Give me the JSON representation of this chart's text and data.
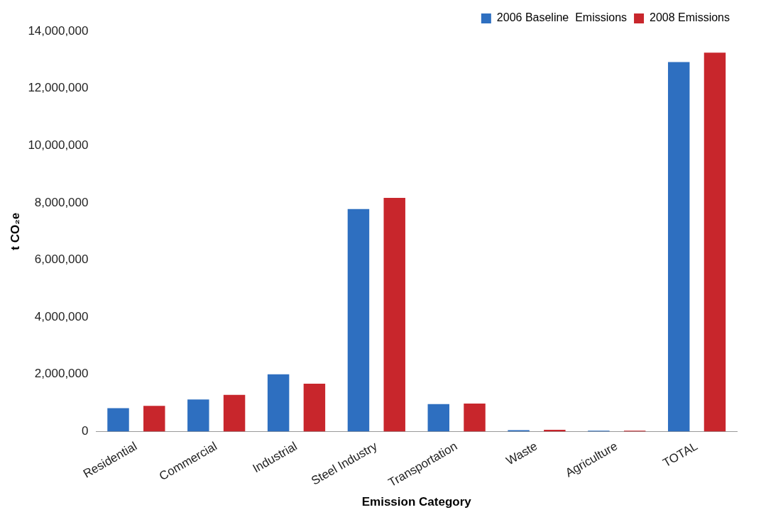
{
  "chart_data": {
    "type": "bar",
    "xlabel": "Emission Category",
    "ylabel": "t CO₂e",
    "categories": [
      "Residential",
      "Commercial",
      "Industrial",
      "Steel Industry",
      "Transportation",
      "Waste",
      "Agriculture",
      "TOTAL"
    ],
    "series": [
      {
        "name": "2006 Baseline  Emissions",
        "color": "#2e6fc0",
        "values": [
          820000,
          1120000,
          2000000,
          7780000,
          960000,
          50000,
          30000,
          12920000
        ]
      },
      {
        "name": "2008 Emissions",
        "color": "#c8262c",
        "values": [
          900000,
          1280000,
          1670000,
          8170000,
          980000,
          60000,
          30000,
          13250000
        ]
      }
    ],
    "ylim": [
      0,
      14000000
    ],
    "yticks": [
      {
        "value": 0,
        "label": "0"
      },
      {
        "value": 2000000,
        "label": "2,000,000"
      },
      {
        "value": 4000000,
        "label": "4,000,000"
      },
      {
        "value": 6000000,
        "label": "6,000,000"
      },
      {
        "value": 8000000,
        "label": "8,000,000"
      },
      {
        "value": 10000000,
        "label": "10,000,000"
      },
      {
        "value": 12000000,
        "label": "12,000,000"
      },
      {
        "value": 14000000,
        "label": "14,000,000"
      }
    ],
    "grid": false,
    "legend": "top right"
  }
}
